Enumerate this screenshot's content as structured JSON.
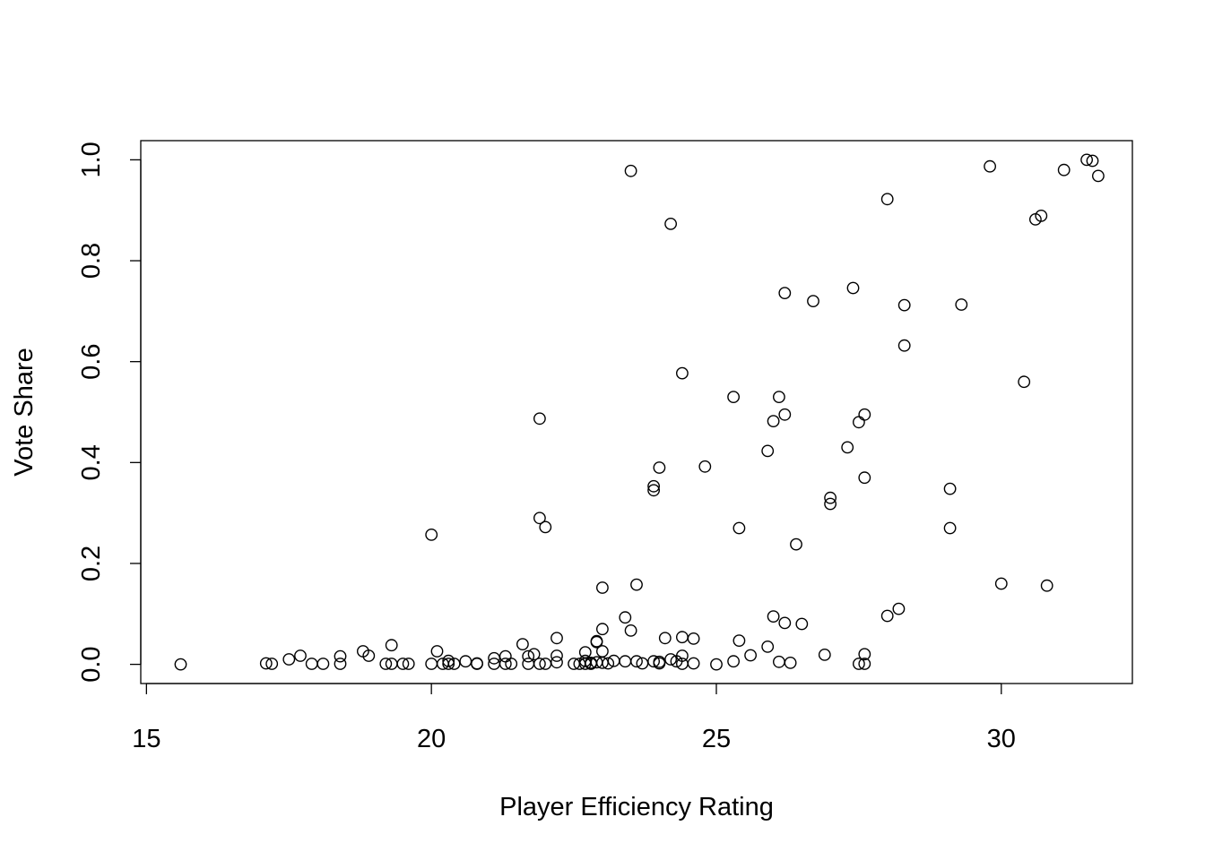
{
  "chart_data": {
    "type": "scatter",
    "title": "",
    "xlabel": "Player Efficiency Rating",
    "ylabel": "Vote Share",
    "xlim": [
      14.9,
      32.3
    ],
    "ylim": [
      -0.038,
      1.038
    ],
    "x_ticks": [
      15,
      20,
      25,
      30
    ],
    "y_ticks": [
      0.0,
      0.2,
      0.4,
      0.6,
      0.8,
      1.0
    ],
    "x_tick_labels": [
      "15",
      "20",
      "25",
      "30"
    ],
    "y_tick_labels": [
      "0.0",
      "0.2",
      "0.4",
      "0.6",
      "0.8",
      "1.0"
    ],
    "marker": "open-circle",
    "grid": false,
    "legend": "none",
    "points": [
      {
        "x": 15.6,
        "y": 0.0
      },
      {
        "x": 17.1,
        "y": 0.002
      },
      {
        "x": 17.2,
        "y": 0.001
      },
      {
        "x": 17.5,
        "y": 0.01
      },
      {
        "x": 17.7,
        "y": 0.017
      },
      {
        "x": 17.9,
        "y": 0.001
      },
      {
        "x": 18.1,
        "y": 0.001
      },
      {
        "x": 18.4,
        "y": 0.016
      },
      {
        "x": 18.4,
        "y": 0.001
      },
      {
        "x": 18.8,
        "y": 0.026
      },
      {
        "x": 18.9,
        "y": 0.017
      },
      {
        "x": 19.2,
        "y": 0.001
      },
      {
        "x": 19.3,
        "y": 0.038
      },
      {
        "x": 19.3,
        "y": 0.001
      },
      {
        "x": 19.5,
        "y": 0.001
      },
      {
        "x": 19.6,
        "y": 0.001
      },
      {
        "x": 20.0,
        "y": 0.257
      },
      {
        "x": 20.0,
        "y": 0.001
      },
      {
        "x": 20.1,
        "y": 0.026
      },
      {
        "x": 20.2,
        "y": 0.001
      },
      {
        "x": 20.3,
        "y": 0.007
      },
      {
        "x": 20.3,
        "y": 0.001
      },
      {
        "x": 20.4,
        "y": 0.001
      },
      {
        "x": 20.6,
        "y": 0.006
      },
      {
        "x": 20.8,
        "y": 0.002
      },
      {
        "x": 20.8,
        "y": 0.001
      },
      {
        "x": 21.1,
        "y": 0.012
      },
      {
        "x": 21.1,
        "y": 0.001
      },
      {
        "x": 21.3,
        "y": 0.016
      },
      {
        "x": 21.3,
        "y": 0.001
      },
      {
        "x": 21.4,
        "y": 0.001
      },
      {
        "x": 21.6,
        "y": 0.04
      },
      {
        "x": 21.7,
        "y": 0.016
      },
      {
        "x": 21.7,
        "y": 0.001
      },
      {
        "x": 21.8,
        "y": 0.02
      },
      {
        "x": 21.9,
        "y": 0.487
      },
      {
        "x": 21.9,
        "y": 0.29
      },
      {
        "x": 21.9,
        "y": 0.001
      },
      {
        "x": 22.0,
        "y": 0.272
      },
      {
        "x": 22.0,
        "y": 0.001
      },
      {
        "x": 22.2,
        "y": 0.052
      },
      {
        "x": 22.2,
        "y": 0.017
      },
      {
        "x": 22.2,
        "y": 0.004
      },
      {
        "x": 22.5,
        "y": 0.001
      },
      {
        "x": 22.6,
        "y": 0.001
      },
      {
        "x": 22.7,
        "y": 0.024
      },
      {
        "x": 22.7,
        "y": 0.007
      },
      {
        "x": 22.7,
        "y": 0.001
      },
      {
        "x": 22.8,
        "y": 0.003
      },
      {
        "x": 22.8,
        "y": 0.001
      },
      {
        "x": 22.9,
        "y": 0.046
      },
      {
        "x": 22.9,
        "y": 0.044
      },
      {
        "x": 22.9,
        "y": 0.004
      },
      {
        "x": 23.0,
        "y": 0.152
      },
      {
        "x": 23.0,
        "y": 0.07
      },
      {
        "x": 23.0,
        "y": 0.026
      },
      {
        "x": 23.0,
        "y": 0.003
      },
      {
        "x": 23.1,
        "y": 0.002
      },
      {
        "x": 23.2,
        "y": 0.007
      },
      {
        "x": 23.4,
        "y": 0.093
      },
      {
        "x": 23.4,
        "y": 0.006
      },
      {
        "x": 23.5,
        "y": 0.978
      },
      {
        "x": 23.5,
        "y": 0.067
      },
      {
        "x": 23.6,
        "y": 0.158
      },
      {
        "x": 23.6,
        "y": 0.006
      },
      {
        "x": 23.7,
        "y": 0.002
      },
      {
        "x": 23.9,
        "y": 0.353
      },
      {
        "x": 23.9,
        "y": 0.345
      },
      {
        "x": 23.9,
        "y": 0.006
      },
      {
        "x": 24.0,
        "y": 0.39
      },
      {
        "x": 24.0,
        "y": 0.005
      },
      {
        "x": 24.0,
        "y": 0.002
      },
      {
        "x": 24.1,
        "y": 0.052
      },
      {
        "x": 24.2,
        "y": 0.873
      },
      {
        "x": 24.2,
        "y": 0.01
      },
      {
        "x": 24.3,
        "y": 0.006
      },
      {
        "x": 24.4,
        "y": 0.577
      },
      {
        "x": 24.4,
        "y": 0.054
      },
      {
        "x": 24.4,
        "y": 0.017
      },
      {
        "x": 24.4,
        "y": 0.001
      },
      {
        "x": 24.6,
        "y": 0.051
      },
      {
        "x": 24.6,
        "y": 0.002
      },
      {
        "x": 24.8,
        "y": 0.392
      },
      {
        "x": 25.0,
        "y": 0.0
      },
      {
        "x": 25.3,
        "y": 0.53
      },
      {
        "x": 25.3,
        "y": 0.006
      },
      {
        "x": 25.4,
        "y": 0.27
      },
      {
        "x": 25.4,
        "y": 0.047
      },
      {
        "x": 25.6,
        "y": 0.018
      },
      {
        "x": 25.9,
        "y": 0.423
      },
      {
        "x": 25.9,
        "y": 0.035
      },
      {
        "x": 26.0,
        "y": 0.482
      },
      {
        "x": 26.0,
        "y": 0.095
      },
      {
        "x": 26.1,
        "y": 0.53
      },
      {
        "x": 26.1,
        "y": 0.005
      },
      {
        "x": 26.2,
        "y": 0.736
      },
      {
        "x": 26.2,
        "y": 0.495
      },
      {
        "x": 26.2,
        "y": 0.082
      },
      {
        "x": 26.3,
        "y": 0.003
      },
      {
        "x": 26.4,
        "y": 0.238
      },
      {
        "x": 26.5,
        "y": 0.08
      },
      {
        "x": 26.7,
        "y": 0.72
      },
      {
        "x": 26.9,
        "y": 0.019
      },
      {
        "x": 27.0,
        "y": 0.33
      },
      {
        "x": 27.0,
        "y": 0.318
      },
      {
        "x": 27.3,
        "y": 0.43
      },
      {
        "x": 27.4,
        "y": 0.746
      },
      {
        "x": 27.5,
        "y": 0.48
      },
      {
        "x": 27.5,
        "y": 0.001
      },
      {
        "x": 27.6,
        "y": 0.495
      },
      {
        "x": 27.6,
        "y": 0.37
      },
      {
        "x": 27.6,
        "y": 0.02
      },
      {
        "x": 27.6,
        "y": 0.001
      },
      {
        "x": 28.0,
        "y": 0.922
      },
      {
        "x": 28.0,
        "y": 0.096
      },
      {
        "x": 28.2,
        "y": 0.11
      },
      {
        "x": 28.3,
        "y": 0.712
      },
      {
        "x": 28.3,
        "y": 0.632
      },
      {
        "x": 29.1,
        "y": 0.348
      },
      {
        "x": 29.1,
        "y": 0.27
      },
      {
        "x": 29.3,
        "y": 0.713
      },
      {
        "x": 29.8,
        "y": 0.987
      },
      {
        "x": 30.0,
        "y": 0.16
      },
      {
        "x": 30.4,
        "y": 0.56
      },
      {
        "x": 30.6,
        "y": 0.882
      },
      {
        "x": 30.7,
        "y": 0.889
      },
      {
        "x": 30.8,
        "y": 0.156
      },
      {
        "x": 31.1,
        "y": 0.98
      },
      {
        "x": 31.5,
        "y": 1.0
      },
      {
        "x": 31.6,
        "y": 0.998
      },
      {
        "x": 31.7,
        "y": 0.968
      }
    ]
  }
}
